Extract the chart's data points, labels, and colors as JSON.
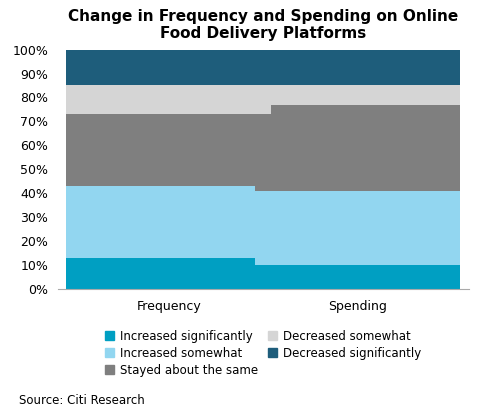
{
  "title": "Change in Frequency and Spending on Online\nFood Delivery Platforms",
  "categories": [
    "Frequency",
    "Spending"
  ],
  "segments": [
    {
      "label": "Increased significantly",
      "color": "#009fc2",
      "values": [
        13,
        10
      ]
    },
    {
      "label": "Increased somewhat",
      "color": "#92d6f0",
      "values": [
        30,
        31
      ]
    },
    {
      "label": "Stayed about the same",
      "color": "#7f7f7f",
      "values": [
        30,
        36
      ]
    },
    {
      "label": "Decreased somewhat",
      "color": "#d5d5d5",
      "values": [
        12,
        8
      ]
    },
    {
      "label": "Decreased significantly",
      "color": "#1e5d7b",
      "values": [
        15,
        15
      ]
    }
  ],
  "ylim": [
    0,
    100
  ],
  "yticks": [
    0,
    10,
    20,
    30,
    40,
    50,
    60,
    70,
    80,
    90,
    100
  ],
  "ytick_labels": [
    "0%",
    "10%",
    "20%",
    "30%",
    "40%",
    "50%",
    "60%",
    "70%",
    "80%",
    "90%",
    "100%"
  ],
  "source": "Source: Citi Research",
  "bar_width": 0.5,
  "background_color": "#ffffff",
  "title_fontsize": 11,
  "tick_fontsize": 9,
  "legend_fontsize": 8.5,
  "source_fontsize": 8.5,
  "legend_order": [
    0,
    1,
    2,
    3,
    4
  ],
  "x_positions": [
    0.27,
    0.73
  ]
}
